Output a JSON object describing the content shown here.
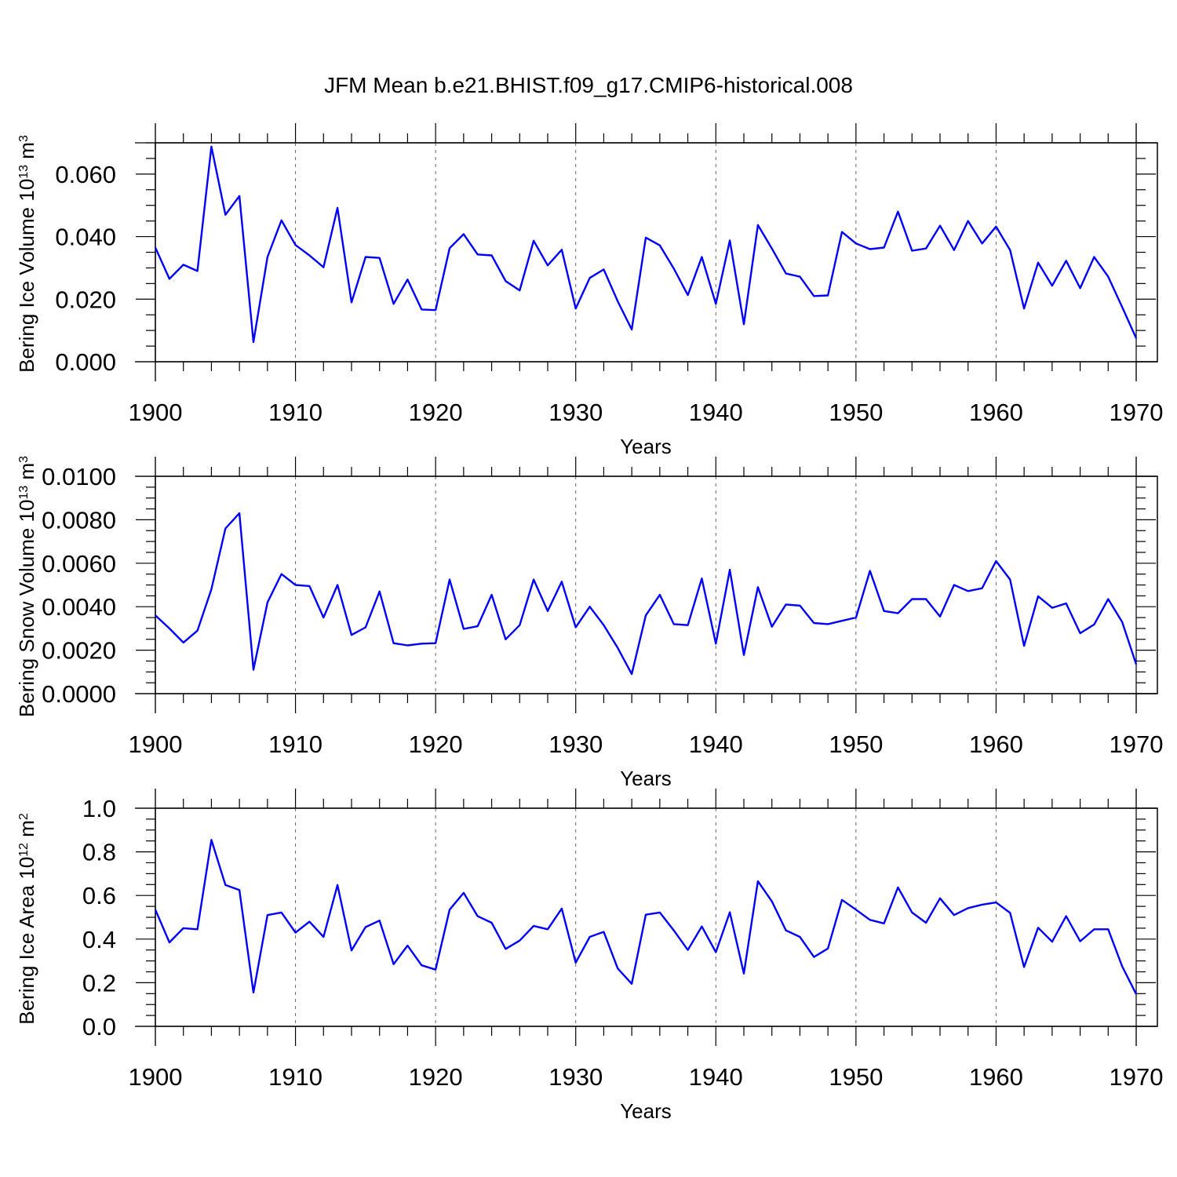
{
  "figure": {
    "title": "JFM Mean b.e21.BHIST.f09_g17.CMIP6-historical.008"
  },
  "chart_data": [
    {
      "type": "line",
      "xlabel": "Years",
      "ylabel": "Bering Ice Volume 10",
      "ylabel_sup": "13",
      "ylabel_unit": " m",
      "ylabel_unit_sup": "3",
      "xlim": [
        1900,
        1970
      ],
      "ylim": [
        0,
        0.07
      ],
      "xticks": [
        "1900",
        "1910",
        "1920",
        "1930",
        "1940",
        "1950",
        "1960",
        "1970"
      ],
      "yticks": [
        "0.000",
        "0.020",
        "0.040",
        "0.060"
      ],
      "ytick_values": [
        0,
        0.02,
        0.04,
        0.06
      ],
      "grid": "vertical dashed at major x ticks",
      "series_color": "#0000ff",
      "x": [
        1900,
        1901,
        1902,
        1903,
        1904,
        1905,
        1906,
        1907,
        1908,
        1909,
        1910,
        1911,
        1912,
        1913,
        1914,
        1915,
        1916,
        1917,
        1918,
        1919,
        1920,
        1921,
        1922,
        1923,
        1924,
        1925,
        1926,
        1927,
        1928,
        1929,
        1930,
        1931,
        1932,
        1933,
        1934,
        1935,
        1936,
        1937,
        1938,
        1939,
        1940,
        1941,
        1942,
        1943,
        1944,
        1945,
        1946,
        1947,
        1948,
        1949,
        1950,
        1951,
        1952,
        1953,
        1954,
        1955,
        1956,
        1957,
        1958,
        1959,
        1960,
        1961,
        1962,
        1963,
        1964,
        1965,
        1966,
        1967,
        1968,
        1969,
        1970
      ],
      "values": [
        0.0365,
        0.0265,
        0.031,
        0.029,
        0.0688,
        0.047,
        0.053,
        0.0063,
        0.0335,
        0.0452,
        0.0373,
        0.034,
        0.0302,
        0.0492,
        0.019,
        0.0335,
        0.0332,
        0.0185,
        0.0263,
        0.0167,
        0.0165,
        0.0363,
        0.0408,
        0.0343,
        0.034,
        0.0258,
        0.0228,
        0.0387,
        0.0308,
        0.0358,
        0.017,
        0.0268,
        0.0295,
        0.0193,
        0.0103,
        0.0397,
        0.0372,
        0.0298,
        0.0213,
        0.0335,
        0.0185,
        0.0388,
        0.012,
        0.0437,
        0.0362,
        0.0282,
        0.0272,
        0.021,
        0.0212,
        0.0415,
        0.0378,
        0.036,
        0.0365,
        0.048,
        0.0355,
        0.0362,
        0.0435,
        0.0357,
        0.045,
        0.0378,
        0.0432,
        0.0357,
        0.017,
        0.0317,
        0.0243,
        0.0323,
        0.0235,
        0.0335,
        0.0272,
        0.0175,
        0.0075
      ]
    },
    {
      "type": "line",
      "xlabel": "Years",
      "ylabel": "Bering Snow Volume 10",
      "ylabel_sup": "13",
      "ylabel_unit": " m",
      "ylabel_unit_sup": "3",
      "xlim": [
        1900,
        1970
      ],
      "ylim": [
        0,
        0.01
      ],
      "xticks": [
        "1900",
        "1910",
        "1920",
        "1930",
        "1940",
        "1950",
        "1960",
        "1970"
      ],
      "yticks": [
        "0.0000",
        "0.0020",
        "0.0040",
        "0.0060",
        "0.0080",
        "0.0100"
      ],
      "ytick_values": [
        0,
        0.002,
        0.004,
        0.006,
        0.008,
        0.01
      ],
      "grid": "vertical dashed at major x ticks",
      "series_color": "#0000ff",
      "x": [
        1900,
        1901,
        1902,
        1903,
        1904,
        1905,
        1906,
        1907,
        1908,
        1909,
        1910,
        1911,
        1912,
        1913,
        1914,
        1915,
        1916,
        1917,
        1918,
        1919,
        1920,
        1921,
        1922,
        1923,
        1924,
        1925,
        1926,
        1927,
        1928,
        1929,
        1930,
        1931,
        1932,
        1933,
        1934,
        1935,
        1936,
        1937,
        1938,
        1939,
        1940,
        1941,
        1942,
        1943,
        1944,
        1945,
        1946,
        1947,
        1948,
        1949,
        1950,
        1951,
        1952,
        1953,
        1954,
        1955,
        1956,
        1957,
        1958,
        1959,
        1960,
        1961,
        1962,
        1963,
        1964,
        1965,
        1966,
        1967,
        1968,
        1969,
        1970
      ],
      "values": [
        0.0036,
        0.003,
        0.00235,
        0.0029,
        0.0048,
        0.0076,
        0.0083,
        0.0011,
        0.0042,
        0.0055,
        0.005,
        0.00495,
        0.0035,
        0.005,
        0.0027,
        0.00305,
        0.0047,
        0.00232,
        0.00222,
        0.0023,
        0.00232,
        0.00525,
        0.00298,
        0.0031,
        0.00455,
        0.0025,
        0.00315,
        0.00525,
        0.0038,
        0.00515,
        0.00305,
        0.004,
        0.00315,
        0.0021,
        0.0009,
        0.0036,
        0.00455,
        0.0032,
        0.00315,
        0.0053,
        0.0023,
        0.0057,
        0.00178,
        0.0049,
        0.00308,
        0.0041,
        0.00405,
        0.00325,
        0.0032,
        0.00335,
        0.0035,
        0.00565,
        0.0038,
        0.0037,
        0.00435,
        0.00435,
        0.00355,
        0.005,
        0.00472,
        0.00485,
        0.0061,
        0.00525,
        0.0022,
        0.00448,
        0.00395,
        0.00415,
        0.00278,
        0.00318,
        0.00435,
        0.0033,
        0.00135
      ]
    },
    {
      "type": "line",
      "xlabel": "Years",
      "ylabel": "Bering Ice Area 10",
      "ylabel_sup": "12",
      "ylabel_unit": " m",
      "ylabel_unit_sup": "2",
      "xlim": [
        1900,
        1970
      ],
      "ylim": [
        0,
        1.0
      ],
      "xticks": [
        "1900",
        "1910",
        "1920",
        "1930",
        "1940",
        "1950",
        "1960",
        "1970"
      ],
      "yticks": [
        "0.0",
        "0.2",
        "0.4",
        "0.6",
        "0.8",
        "1.0"
      ],
      "ytick_values": [
        0,
        0.2,
        0.4,
        0.6,
        0.8,
        1.0
      ],
      "grid": "vertical dashed at major x ticks",
      "series_color": "#0000ff",
      "x": [
        1900,
        1901,
        1902,
        1903,
        1904,
        1905,
        1906,
        1907,
        1908,
        1909,
        1910,
        1911,
        1912,
        1913,
        1914,
        1915,
        1916,
        1917,
        1918,
        1919,
        1920,
        1921,
        1922,
        1923,
        1924,
        1925,
        1926,
        1927,
        1928,
        1929,
        1930,
        1931,
        1932,
        1933,
        1934,
        1935,
        1936,
        1937,
        1938,
        1939,
        1940,
        1941,
        1942,
        1943,
        1944,
        1945,
        1946,
        1947,
        1948,
        1949,
        1950,
        1951,
        1952,
        1953,
        1954,
        1955,
        1956,
        1957,
        1958,
        1959,
        1960,
        1961,
        1962,
        1963,
        1964,
        1965,
        1966,
        1967,
        1968,
        1969,
        1970
      ],
      "values": [
        0.535,
        0.385,
        0.45,
        0.445,
        0.855,
        0.648,
        0.625,
        0.155,
        0.51,
        0.522,
        0.43,
        0.48,
        0.41,
        0.648,
        0.348,
        0.455,
        0.485,
        0.285,
        0.37,
        0.28,
        0.26,
        0.535,
        0.612,
        0.505,
        0.475,
        0.355,
        0.393,
        0.46,
        0.445,
        0.54,
        0.292,
        0.41,
        0.433,
        0.265,
        0.195,
        0.512,
        0.522,
        0.44,
        0.35,
        0.458,
        0.34,
        0.523,
        0.242,
        0.665,
        0.573,
        0.44,
        0.41,
        0.318,
        0.357,
        0.58,
        0.535,
        0.488,
        0.472,
        0.637,
        0.522,
        0.475,
        0.587,
        0.51,
        0.542,
        0.558,
        0.568,
        0.52,
        0.272,
        0.452,
        0.388,
        0.505,
        0.39,
        0.445,
        0.445,
        0.275,
        0.148
      ]
    }
  ]
}
